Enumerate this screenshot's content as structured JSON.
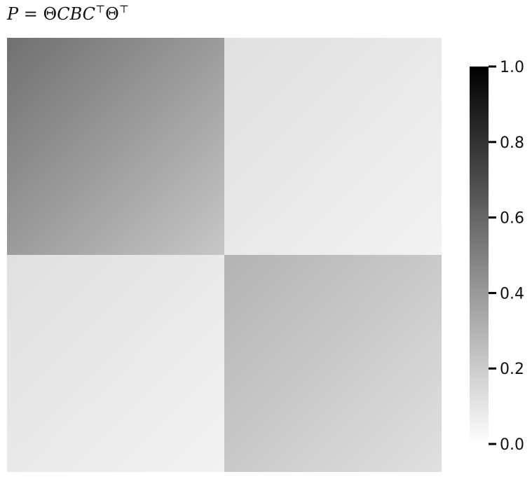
{
  "chart_data": {
    "type": "heatmap",
    "title": "P = ΘCBC⊤Θ⊤",
    "title_parts": {
      "p": "P",
      "eq": " = ",
      "theta1": "Θ",
      "cbc": "CBC",
      "t1": "⊤",
      "theta2": "Θ",
      "t2": "⊤"
    },
    "xlabel": "",
    "ylabel": "",
    "colormap": "Greys",
    "color_low": "#ffffff",
    "color_high": "#000000",
    "vmin": 0.0,
    "vmax": 1.0,
    "grid": false,
    "blocks": [
      {
        "row": 0,
        "col": 0,
        "value_top_left": 0.56,
        "value_bottom_right": 0.22
      },
      {
        "row": 0,
        "col": 1,
        "value_top_left": 0.12,
        "value_bottom_right": 0.05
      },
      {
        "row": 1,
        "col": 0,
        "value_top_left": 0.12,
        "value_bottom_right": 0.05
      },
      {
        "row": 1,
        "col": 1,
        "value_top_left": 0.3,
        "value_bottom_right": 0.12
      }
    ],
    "colorbar": {
      "placement": "right",
      "ticks": [
        0.0,
        0.2,
        0.4,
        0.6,
        0.8,
        1.0
      ],
      "tick_labels": [
        "0.0",
        "0.2",
        "0.4",
        "0.6",
        "0.8",
        "1.0"
      ]
    }
  }
}
